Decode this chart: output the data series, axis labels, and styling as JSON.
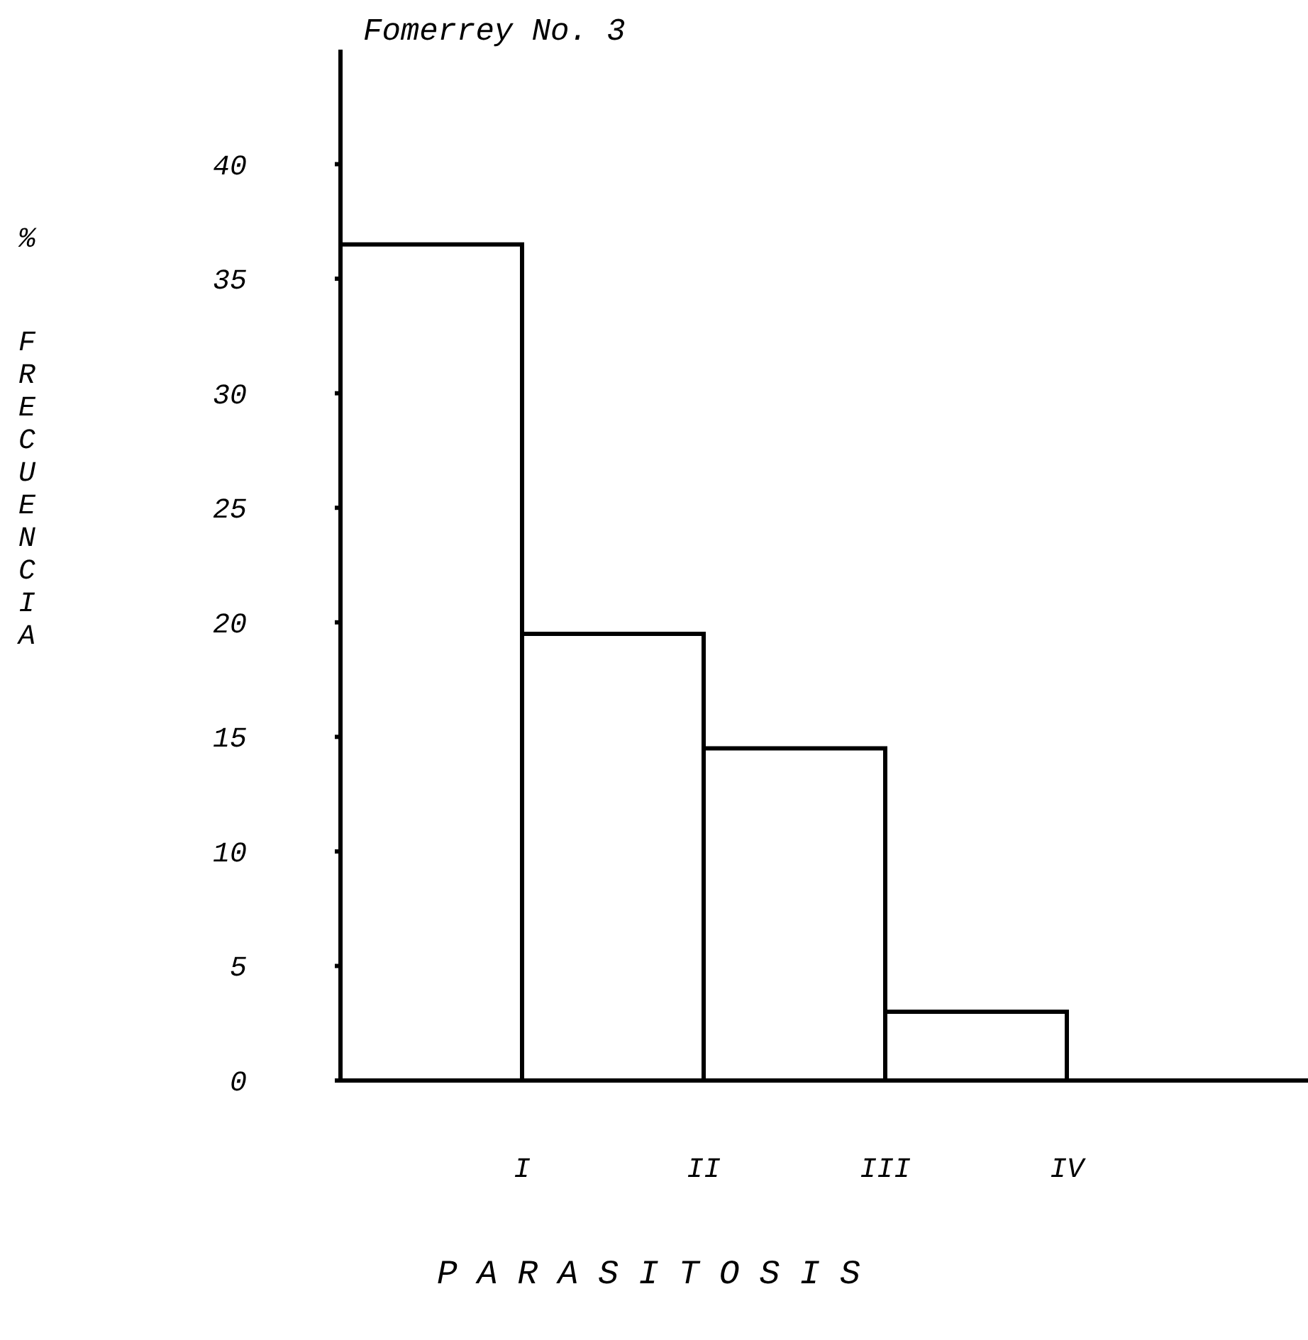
{
  "chart_data": {
    "type": "bar",
    "title": "Fomerrey No. 3",
    "xlabel": "PARASITOSIS",
    "ylabel": "% FRECUENCIA",
    "categories": [
      "I",
      "II",
      "III",
      "IV"
    ],
    "values": [
      36.5,
      19.5,
      14.5,
      3
    ],
    "color": "#ffffff",
    "ylim": [
      0,
      45
    ],
    "yticks": [
      0,
      5,
      10,
      15,
      20,
      25,
      30,
      35,
      40
    ],
    "grid": false,
    "legend": false
  }
}
